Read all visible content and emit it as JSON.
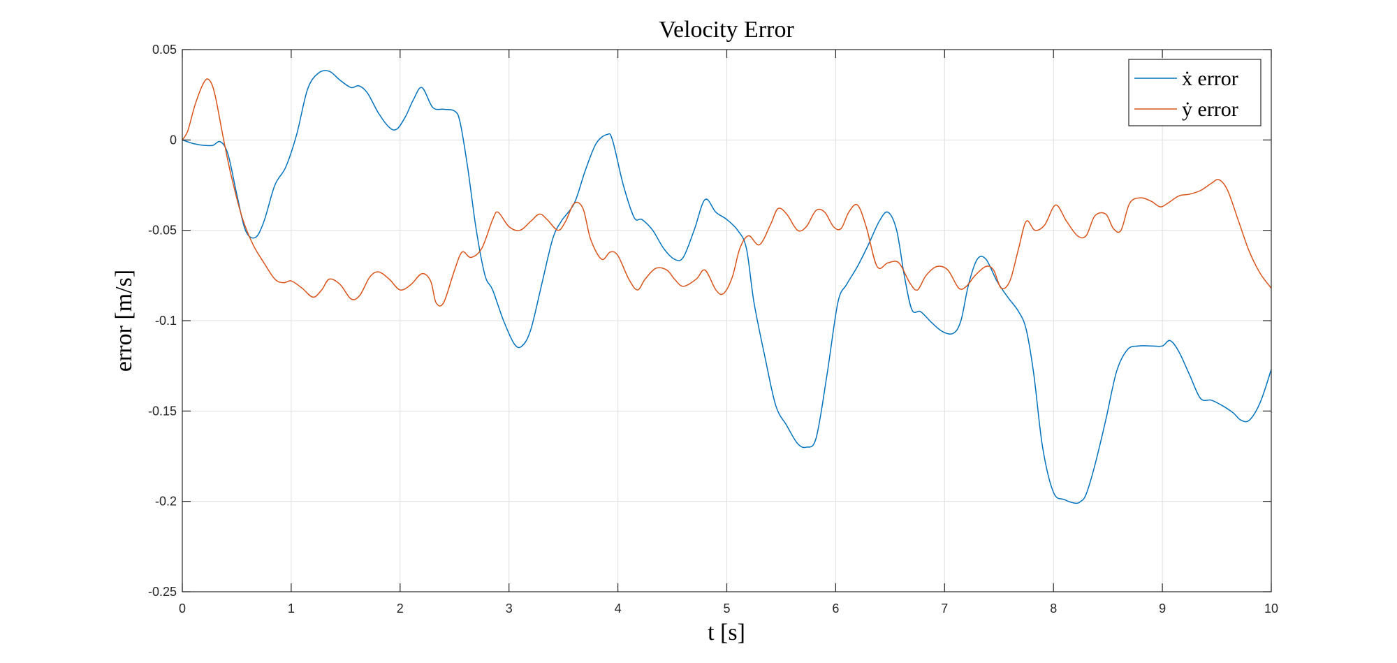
{
  "chart_data": {
    "type": "line",
    "title": "Velocity Error",
    "xlabel": "t [s]",
    "ylabel": "error [m/s]",
    "xlim": [
      0,
      10
    ],
    "ylim": [
      -0.25,
      0.05
    ],
    "xticks": [
      0,
      1,
      2,
      3,
      4,
      5,
      6,
      7,
      8,
      9,
      10
    ],
    "xtick_labels": [
      "0",
      "1",
      "2",
      "3",
      "4",
      "5",
      "6",
      "7",
      "8",
      "9",
      "10"
    ],
    "yticks": [
      0.05,
      0,
      -0.05,
      -0.1,
      -0.15,
      -0.2,
      -0.25
    ],
    "ytick_labels": [
      "0.05",
      "0",
      "-0.05",
      "-0.1",
      "-0.15",
      "-0.2",
      "-0.25"
    ],
    "grid": true,
    "legend_position": "top-right",
    "series": [
      {
        "name": "ẋ error",
        "color": "#0072BD",
        "x": [
          0,
          0.1,
          0.2,
          0.28,
          0.35,
          0.42,
          0.5,
          0.58,
          0.67,
          0.75,
          0.85,
          0.95,
          1.05,
          1.15,
          1.25,
          1.35,
          1.45,
          1.55,
          1.62,
          1.7,
          1.8,
          1.9,
          1.97,
          2.05,
          2.12,
          2.2,
          2.3,
          2.4,
          2.5,
          2.55,
          2.62,
          2.7,
          2.78,
          2.85,
          2.95,
          3.05,
          3.12,
          3.2,
          3.3,
          3.4,
          3.48,
          3.6,
          3.7,
          3.8,
          3.9,
          3.95,
          4.05,
          4.15,
          4.22,
          4.32,
          4.42,
          4.52,
          4.6,
          4.7,
          4.8,
          4.9,
          5.0,
          5.1,
          5.18,
          5.25,
          5.35,
          5.45,
          5.55,
          5.65,
          5.73,
          5.82,
          5.92,
          6.02,
          6.1,
          6.2,
          6.3,
          6.4,
          6.48,
          6.56,
          6.63,
          6.7,
          6.78,
          6.88,
          6.98,
          7.08,
          7.15,
          7.22,
          7.3,
          7.38,
          7.48,
          7.58,
          7.68,
          7.75,
          7.82,
          7.9,
          8.0,
          8.1,
          8.2,
          8.25,
          8.3,
          8.38,
          8.48,
          8.58,
          8.68,
          8.78,
          8.9,
          9.0,
          9.07,
          9.15,
          9.25,
          9.35,
          9.45,
          9.55,
          9.65,
          9.72,
          9.8,
          9.9,
          10.0
        ],
        "values": [
          0,
          -0.002,
          -0.003,
          -0.003,
          -0.001,
          -0.008,
          -0.03,
          -0.05,
          -0.054,
          -0.045,
          -0.025,
          -0.015,
          0.003,
          0.028,
          0.037,
          0.038,
          0.033,
          0.029,
          0.03,
          0.026,
          0.015,
          0.007,
          0.006,
          0.013,
          0.022,
          0.029,
          0.018,
          0.017,
          0.016,
          0.01,
          -0.015,
          -0.05,
          -0.075,
          -0.083,
          -0.1,
          -0.113,
          -0.114,
          -0.105,
          -0.08,
          -0.055,
          -0.045,
          -0.035,
          -0.017,
          -0.002,
          0.003,
          0.0,
          -0.025,
          -0.043,
          -0.044,
          -0.05,
          -0.06,
          -0.066,
          -0.065,
          -0.05,
          -0.033,
          -0.04,
          -0.044,
          -0.05,
          -0.06,
          -0.09,
          -0.12,
          -0.147,
          -0.158,
          -0.168,
          -0.17,
          -0.165,
          -0.13,
          -0.09,
          -0.08,
          -0.07,
          -0.058,
          -0.045,
          -0.04,
          -0.05,
          -0.075,
          -0.094,
          -0.095,
          -0.101,
          -0.106,
          -0.107,
          -0.1,
          -0.08,
          -0.066,
          -0.066,
          -0.078,
          -0.087,
          -0.095,
          -0.105,
          -0.13,
          -0.17,
          -0.195,
          -0.199,
          -0.201,
          -0.2,
          -0.196,
          -0.18,
          -0.155,
          -0.128,
          -0.116,
          -0.114,
          -0.114,
          -0.114,
          -0.111,
          -0.117,
          -0.13,
          -0.143,
          -0.144,
          -0.147,
          -0.151,
          -0.155,
          -0.155,
          -0.145,
          -0.127
        ]
      },
      {
        "name": "ẏ error",
        "color": "#D95319",
        "x": [
          0,
          0.05,
          0.12,
          0.2,
          0.25,
          0.3,
          0.38,
          0.45,
          0.55,
          0.65,
          0.75,
          0.85,
          0.93,
          1.0,
          1.1,
          1.2,
          1.28,
          1.35,
          1.45,
          1.55,
          1.63,
          1.72,
          1.8,
          1.9,
          2.0,
          2.1,
          2.2,
          2.28,
          2.33,
          2.4,
          2.5,
          2.57,
          2.65,
          2.75,
          2.85,
          2.9,
          3.0,
          3.1,
          3.2,
          3.28,
          3.35,
          3.45,
          3.52,
          3.6,
          3.68,
          3.75,
          3.85,
          3.93,
          4.0,
          4.1,
          4.18,
          4.25,
          4.35,
          4.45,
          4.52,
          4.6,
          4.72,
          4.8,
          4.9,
          4.97,
          5.05,
          5.12,
          5.2,
          5.3,
          5.4,
          5.47,
          5.55,
          5.65,
          5.73,
          5.82,
          5.9,
          5.98,
          6.05,
          6.12,
          6.2,
          6.28,
          6.38,
          6.48,
          6.58,
          6.68,
          6.75,
          6.83,
          6.93,
          7.03,
          7.13,
          7.2,
          7.28,
          7.38,
          7.45,
          7.52,
          7.6,
          7.68,
          7.75,
          7.83,
          7.92,
          8.02,
          8.12,
          8.22,
          8.3,
          8.38,
          8.48,
          8.55,
          8.62,
          8.7,
          8.8,
          8.9,
          8.98,
          9.05,
          9.15,
          9.25,
          9.35,
          9.45,
          9.52,
          9.6,
          9.7,
          9.8,
          9.9,
          10.0
        ],
        "values": [
          0,
          0.005,
          0.02,
          0.032,
          0.033,
          0.025,
          0.0,
          -0.02,
          -0.043,
          -0.058,
          -0.068,
          -0.077,
          -0.079,
          -0.078,
          -0.082,
          -0.087,
          -0.083,
          -0.077,
          -0.08,
          -0.088,
          -0.086,
          -0.076,
          -0.073,
          -0.077,
          -0.083,
          -0.08,
          -0.074,
          -0.078,
          -0.09,
          -0.09,
          -0.072,
          -0.062,
          -0.065,
          -0.06,
          -0.044,
          -0.04,
          -0.048,
          -0.05,
          -0.045,
          -0.041,
          -0.044,
          -0.05,
          -0.045,
          -0.035,
          -0.038,
          -0.055,
          -0.066,
          -0.062,
          -0.064,
          -0.077,
          -0.083,
          -0.077,
          -0.071,
          -0.072,
          -0.077,
          -0.081,
          -0.077,
          -0.072,
          -0.083,
          -0.085,
          -0.076,
          -0.06,
          -0.053,
          -0.058,
          -0.047,
          -0.038,
          -0.041,
          -0.05,
          -0.048,
          -0.039,
          -0.04,
          -0.048,
          -0.049,
          -0.04,
          -0.036,
          -0.048,
          -0.07,
          -0.068,
          -0.068,
          -0.079,
          -0.083,
          -0.075,
          -0.07,
          -0.072,
          -0.082,
          -0.081,
          -0.075,
          -0.07,
          -0.072,
          -0.082,
          -0.078,
          -0.06,
          -0.045,
          -0.05,
          -0.047,
          -0.036,
          -0.045,
          -0.053,
          -0.053,
          -0.042,
          -0.041,
          -0.049,
          -0.05,
          -0.035,
          -0.032,
          -0.034,
          -0.037,
          -0.035,
          -0.031,
          -0.03,
          -0.028,
          -0.024,
          -0.022,
          -0.028,
          -0.045,
          -0.062,
          -0.074,
          -0.082
        ]
      }
    ]
  }
}
